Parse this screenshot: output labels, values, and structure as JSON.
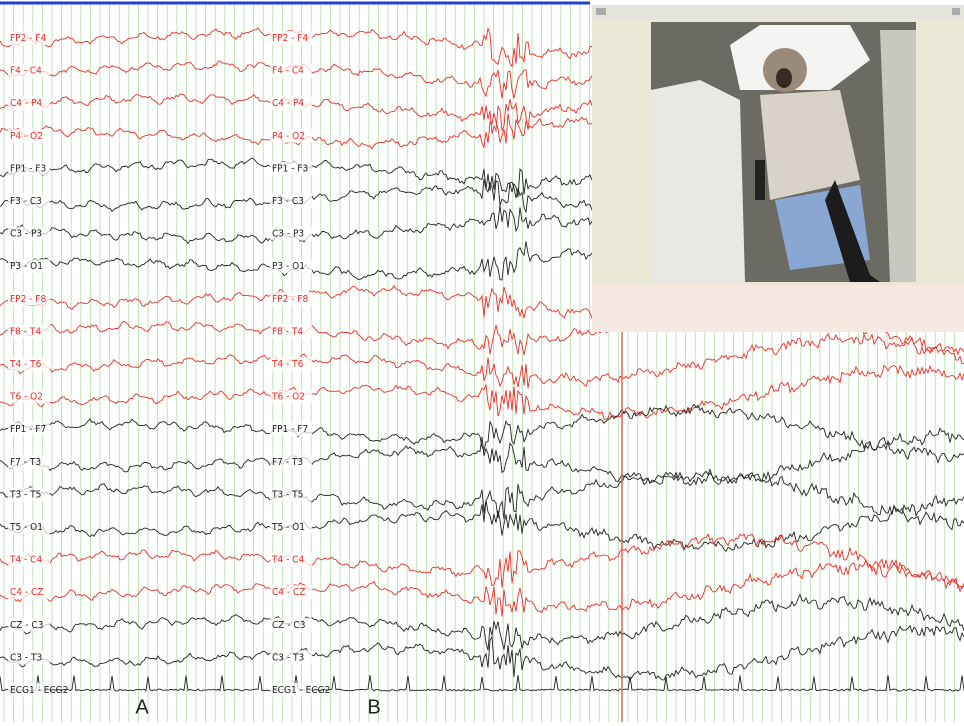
{
  "channels": [
    {
      "name": "FP2 - F4",
      "color": "#e8302a"
    },
    {
      "name": "F4 - C4",
      "color": "#e8302a"
    },
    {
      "name": "C4 - P4",
      "color": "#e8302a"
    },
    {
      "name": "P4 - O2",
      "color": "#e8302a"
    },
    {
      "name": "FP1 - F3",
      "color": "#222222"
    },
    {
      "name": "F3 - C3",
      "color": "#222222"
    },
    {
      "name": "C3 - P3",
      "color": "#222222"
    },
    {
      "name": "P3 - O1",
      "color": "#222222"
    },
    {
      "name": "FP2 - F8",
      "color": "#e8302a"
    },
    {
      "name": "F8 - T4",
      "color": "#e8302a"
    },
    {
      "name": "T4 - T6",
      "color": "#e8302a"
    },
    {
      "name": "T6 - O2",
      "color": "#e8302a"
    },
    {
      "name": "FP1 - F7",
      "color": "#222222"
    },
    {
      "name": "F7 - T3",
      "color": "#222222"
    },
    {
      "name": "T3 - T5",
      "color": "#222222"
    },
    {
      "name": "T5 - O1",
      "color": "#222222"
    },
    {
      "name": "T4 - C4",
      "color": "#e8302a"
    },
    {
      "name": "C4 - CZ",
      "color": "#e8302a"
    },
    {
      "name": "CZ - C3",
      "color": "#222222"
    },
    {
      "name": "C3 - T3",
      "color": "#222222"
    },
    {
      "name": "ECG1 - ECG2",
      "color": "#222222"
    }
  ],
  "panels": [
    {
      "label": "A"
    },
    {
      "label": "B"
    }
  ]
}
